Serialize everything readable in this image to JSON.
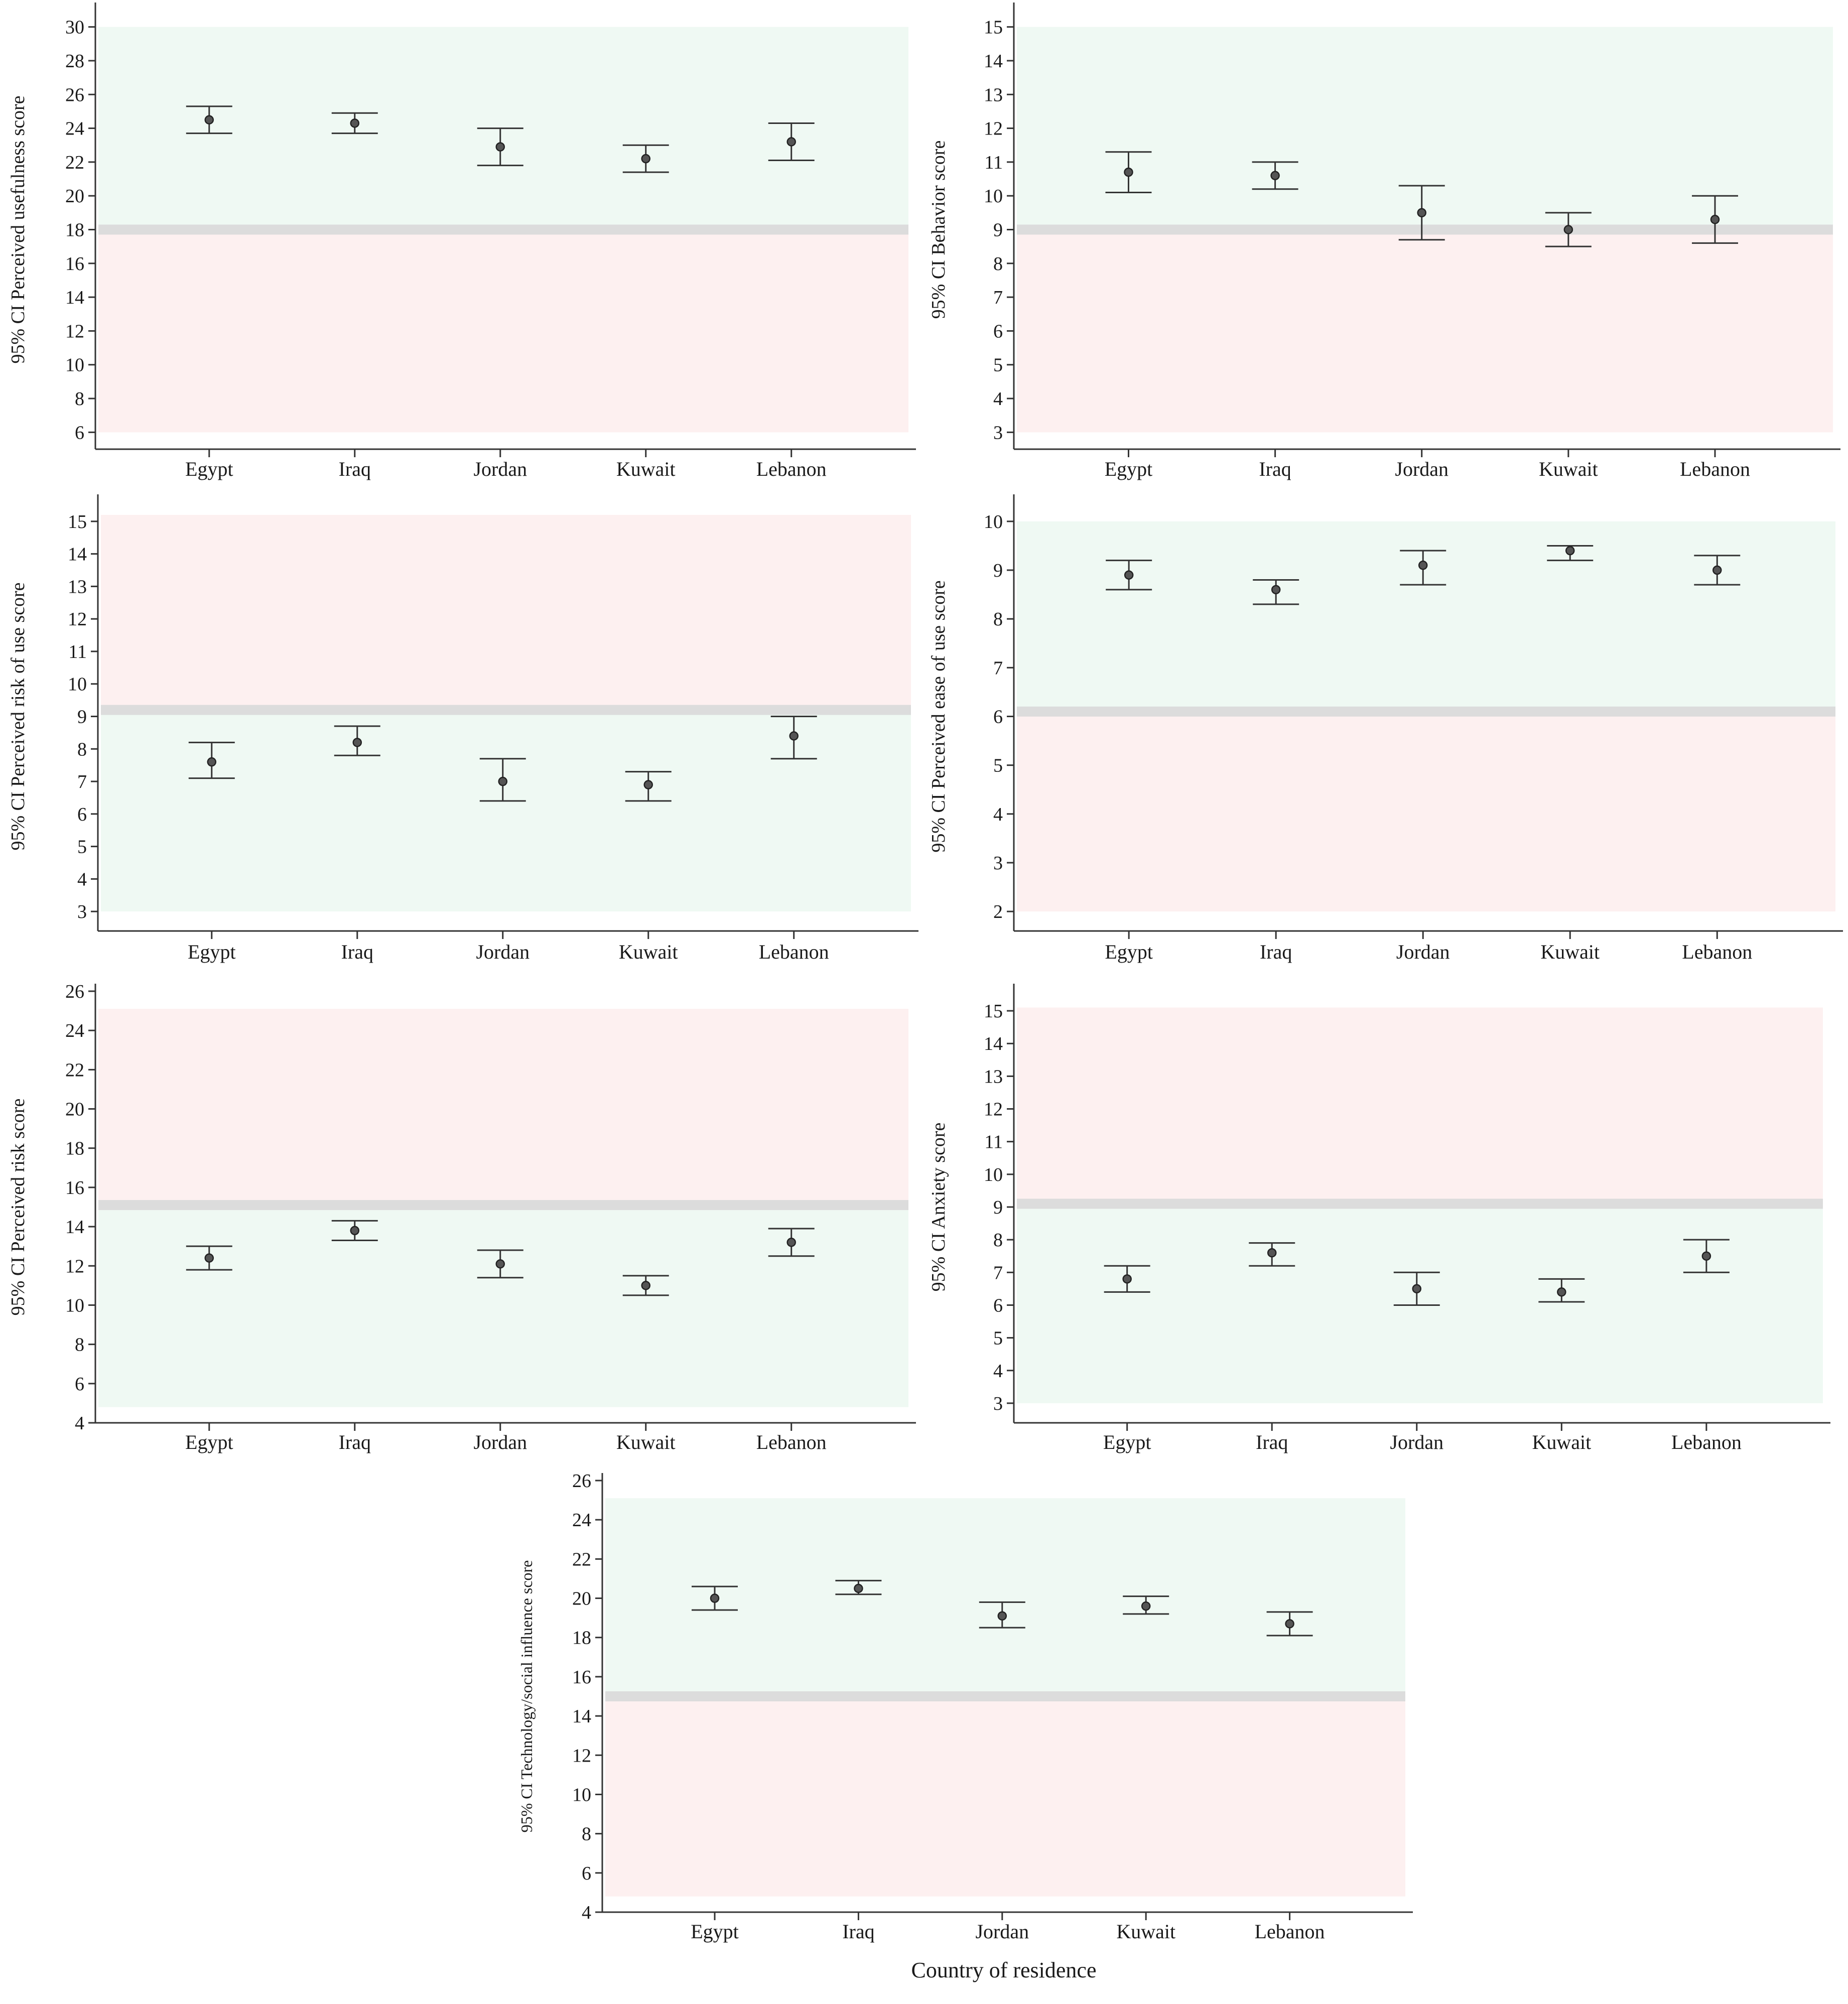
{
  "figure": {
    "xlabel": "Country of residence",
    "colors": {
      "green_band": "#eff9f3",
      "red_band": "#fdf0f0",
      "threshold": "#dcdcdc",
      "axis": "#333333",
      "errorbar": "#333333",
      "point_fill": "#555555"
    }
  },
  "chart_data": [
    {
      "type": "errorbar",
      "ylabel": "95% CI Perceived usefulness score",
      "categories": [
        "Egypt",
        "Iraq",
        "Jordan",
        "Kuwait",
        "Lebanon"
      ],
      "mean": [
        24.5,
        24.3,
        22.9,
        22.2,
        23.2
      ],
      "lower": [
        23.7,
        23.7,
        21.8,
        21.4,
        22.1
      ],
      "upper": [
        25.3,
        24.9,
        24.0,
        23.0,
        24.3
      ],
      "ylim": [
        5,
        31
      ],
      "yticks": [
        6,
        8,
        10,
        12,
        14,
        16,
        18,
        20,
        22,
        24,
        26,
        28,
        30
      ],
      "threshold": 18,
      "bands": [
        {
          "from": 18,
          "to": 30,
          "color": "green"
        },
        {
          "from": 6,
          "to": 18,
          "color": "red"
        }
      ]
    },
    {
      "type": "errorbar",
      "ylabel": "95% CI Behavior score",
      "categories": [
        "Egypt",
        "Iraq",
        "Jordan",
        "Kuwait",
        "Lebanon"
      ],
      "mean": [
        10.7,
        10.6,
        9.5,
        9.0,
        9.3
      ],
      "lower": [
        10.1,
        10.2,
        8.7,
        8.5,
        8.6
      ],
      "upper": [
        11.3,
        11.0,
        10.3,
        9.5,
        10.0
      ],
      "ylim": [
        2.5,
        15.5
      ],
      "yticks": [
        3,
        4,
        5,
        6,
        7,
        8,
        9,
        10,
        11,
        12,
        13,
        14,
        15
      ],
      "threshold": 9,
      "bands": [
        {
          "from": 9,
          "to": 15,
          "color": "green"
        },
        {
          "from": 3,
          "to": 9,
          "color": "red"
        }
      ]
    },
    {
      "type": "errorbar",
      "ylabel": "95% CI Perceived risk of use score",
      "categories": [
        "Egypt",
        "Iraq",
        "Jordan",
        "Kuwait",
        "Lebanon"
      ],
      "mean": [
        7.6,
        8.2,
        7.0,
        6.9,
        8.4
      ],
      "lower": [
        7.1,
        7.8,
        6.4,
        6.4,
        7.7
      ],
      "upper": [
        8.2,
        8.7,
        7.7,
        7.3,
        9.0
      ],
      "ylim": [
        2.4,
        15.6
      ],
      "yticks": [
        3,
        4,
        5,
        6,
        7,
        8,
        9,
        10,
        11,
        12,
        13,
        14,
        15
      ],
      "threshold": 9.2,
      "bands": [
        {
          "from": 9.2,
          "to": 15.2,
          "color": "red"
        },
        {
          "from": 3,
          "to": 9.2,
          "color": "green"
        }
      ]
    },
    {
      "type": "errorbar",
      "ylabel": "95% CI Perceived ease of use score",
      "categories": [
        "Egypt",
        "Iraq",
        "Jordan",
        "Kuwait",
        "Lebanon"
      ],
      "mean": [
        8.9,
        8.6,
        9.1,
        9.4,
        9.0
      ],
      "lower": [
        8.6,
        8.3,
        8.7,
        9.2,
        8.7
      ],
      "upper": [
        9.2,
        8.8,
        9.4,
        9.5,
        9.3
      ],
      "ylim": [
        1.6,
        10.4
      ],
      "yticks": [
        2,
        3,
        4,
        5,
        6,
        7,
        8,
        9,
        10
      ],
      "threshold": 6.1,
      "bands": [
        {
          "from": 6.1,
          "to": 10,
          "color": "green"
        },
        {
          "from": 2,
          "to": 6.1,
          "color": "red"
        }
      ]
    },
    {
      "type": "errorbar",
      "ylabel": "95% CI Perceived risk score",
      "categories": [
        "Egypt",
        "Iraq",
        "Jordan",
        "Kuwait",
        "Lebanon"
      ],
      "mean": [
        12.4,
        13.8,
        12.1,
        11.0,
        13.2
      ],
      "lower": [
        11.8,
        13.3,
        11.4,
        10.5,
        12.5
      ],
      "upper": [
        13.0,
        14.3,
        12.8,
        11.5,
        13.9
      ],
      "ylim": [
        4,
        26
      ],
      "yticks": [
        4,
        6,
        8,
        10,
        12,
        14,
        16,
        18,
        20,
        22,
        24,
        26
      ],
      "threshold": 15.1,
      "bands": [
        {
          "from": 15.1,
          "to": 25.1,
          "color": "red"
        },
        {
          "from": 4.8,
          "to": 15.1,
          "color": "green"
        }
      ]
    },
    {
      "type": "errorbar",
      "ylabel": "95% CI Anxiety score",
      "categories": [
        "Egypt",
        "Iraq",
        "Jordan",
        "Kuwait",
        "Lebanon"
      ],
      "mean": [
        6.8,
        7.6,
        6.5,
        6.4,
        7.5
      ],
      "lower": [
        6.4,
        7.2,
        6.0,
        6.1,
        7.0
      ],
      "upper": [
        7.2,
        7.9,
        7.0,
        6.8,
        8.0
      ],
      "ylim": [
        2.4,
        15.6
      ],
      "yticks": [
        3,
        4,
        5,
        6,
        7,
        8,
        9,
        10,
        11,
        12,
        13,
        14,
        15
      ],
      "threshold": 9.1,
      "bands": [
        {
          "from": 9.1,
          "to": 15.1,
          "color": "red"
        },
        {
          "from": 3,
          "to": 9.1,
          "color": "green"
        }
      ]
    },
    {
      "type": "errorbar",
      "ylabel": "95% CI Technology/social influence score",
      "categories": [
        "Egypt",
        "Iraq",
        "Jordan",
        "Kuwait",
        "Lebanon"
      ],
      "mean": [
        20.0,
        20.5,
        19.1,
        19.6,
        18.7
      ],
      "lower": [
        19.4,
        20.2,
        18.5,
        19.2,
        18.1
      ],
      "upper": [
        20.6,
        20.9,
        19.8,
        20.1,
        19.3
      ],
      "ylim": [
        4,
        26
      ],
      "yticks": [
        4,
        6,
        8,
        10,
        12,
        14,
        16,
        18,
        20,
        22,
        24,
        26
      ],
      "threshold": 15.0,
      "bands": [
        {
          "from": 15.0,
          "to": 25.1,
          "color": "green"
        },
        {
          "from": 4.8,
          "to": 15.0,
          "color": "red"
        }
      ]
    }
  ]
}
